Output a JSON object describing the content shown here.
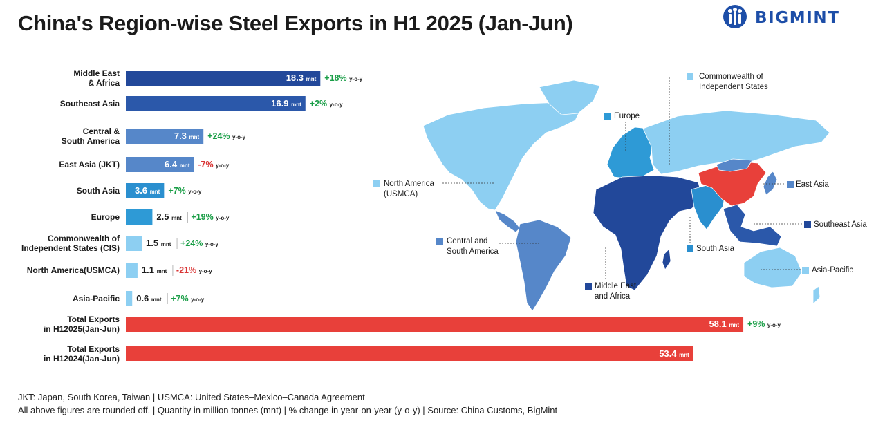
{
  "title": "China's Region-wise Steel Exports in H1 2025 (Jan-Jun)",
  "brand": "BIGMINT",
  "footnotes": [
    "JKT: Japan, South Korea, Taiwan | USMCA: United States–Mexico–Canada Agreement",
    "All above figures are rounded off. | Quantity in million tonnes (mnt) | % change in year-on-year (y-o-y) | Source: China Customs, BigMint"
  ],
  "colors": {
    "mea": "#22489a",
    "sea": "#2b58aa",
    "csa": "#5687c9",
    "ea": "#5687c9",
    "sa": "#2a8fcf",
    "eu": "#2e9ad6",
    "cis": "#8dcff2",
    "na": "#8dcff2",
    "ap": "#8dcff2",
    "total": "#e8403a",
    "positive": "#1a9e47",
    "negative": "#d93636"
  },
  "chart_data": {
    "type": "bar",
    "orientation": "horizontal",
    "unit": "mnt",
    "change_suffix": "y-o-y",
    "categories": [
      [
        "Middle East",
        "& Africa"
      ],
      [
        "Southeast Asia"
      ],
      [
        "Central &",
        "South America"
      ],
      [
        "East Asia (JKT)"
      ],
      [
        "South Asia"
      ],
      [
        "Europe"
      ],
      [
        "Commonwealth of",
        "Independent States (CIS)"
      ],
      [
        "North America(USMCA)"
      ],
      [
        "Asia-Pacific"
      ],
      [
        "Total Exports",
        "in H12025(Jan-Jun)"
      ],
      [
        "Total Exports",
        "in H12024(Jan-Jun)"
      ]
    ],
    "values": [
      18.3,
      16.9,
      7.3,
      6.4,
      3.6,
      2.5,
      1.5,
      1.1,
      0.6,
      58.1,
      53.4
    ],
    "changes": [
      "+18%",
      "+2%",
      "+24%",
      "-7%",
      "+7%",
      "+19%",
      "+24%",
      "-21%",
      "+7%",
      "+9%",
      ""
    ],
    "bar_colors": [
      "mea",
      "sea",
      "csa",
      "ea",
      "sa",
      "eu",
      "cis",
      "na",
      "ap",
      "total",
      "total"
    ],
    "value_inside": [
      true,
      true,
      true,
      true,
      true,
      false,
      false,
      false,
      false,
      true,
      true
    ]
  },
  "map": {
    "labels": [
      {
        "id": "cis",
        "lines": [
          "Commonwealth of",
          "Independent States"
        ],
        "color": "cis"
      },
      {
        "id": "eu",
        "lines": [
          "Europe"
        ],
        "color": "eu"
      },
      {
        "id": "na",
        "lines": [
          "North America",
          "(USMCA)"
        ],
        "color": "na"
      },
      {
        "id": "ea",
        "lines": [
          "East Asia"
        ],
        "color": "ea"
      },
      {
        "id": "sea",
        "lines": [
          "Southeast Asia"
        ],
        "color": "mea"
      },
      {
        "id": "csa",
        "lines": [
          "Central and",
          "South America"
        ],
        "color": "csa"
      },
      {
        "id": "sa",
        "lines": [
          "South Asia"
        ],
        "color": "sa"
      },
      {
        "id": "ap",
        "lines": [
          "Asia-Pacific"
        ],
        "color": "ap"
      },
      {
        "id": "mea",
        "lines": [
          "Middle East",
          "and Africa"
        ],
        "color": "mea"
      }
    ],
    "china_color": "#e8403a"
  }
}
